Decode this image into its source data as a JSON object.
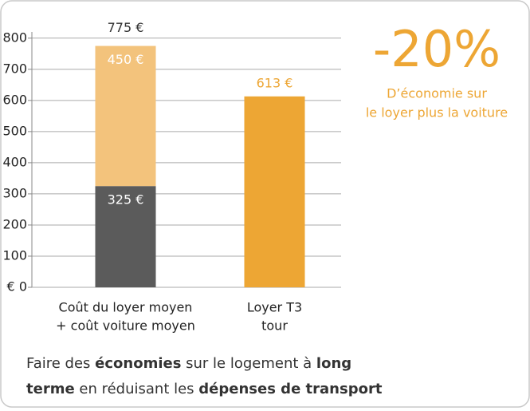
{
  "chart_data": {
    "type": "stacked_bar",
    "categories": [
      [
        "Coût du loyer moyen",
        "+ coût voiture moyen"
      ],
      [
        "Loyer T3",
        "tour"
      ]
    ],
    "series": [
      {
        "color": "#5b5b5b",
        "values": [
          325,
          null
        ],
        "value_labels": [
          "325 €",
          null
        ],
        "label_color": "#ffffff"
      },
      {
        "color": "#f3c37c",
        "values": [
          450,
          null
        ],
        "value_labels": [
          "450 €",
          null
        ],
        "label_color": "#ffffff"
      },
      {
        "color": "#eda634",
        "values": [
          null,
          613
        ],
        "value_labels": [
          null,
          "613 €"
        ],
        "label_color": "#eda634",
        "label_outside": true
      }
    ],
    "totals": [
      775,
      null
    ],
    "total_labels": [
      "775 €",
      null
    ],
    "ylim": [
      0,
      820
    ],
    "yticks": [
      {
        "value": 0,
        "label": "€ 0"
      },
      100,
      200,
      300,
      400,
      500,
      600,
      700,
      800
    ],
    "grid": true,
    "annotation": {
      "headline": "-20%",
      "lines": [
        "D’économie sur",
        "le loyer plus la voiture"
      ],
      "color": "#eda634"
    },
    "caption": [
      [
        {
          "text": "Faire des ",
          "bold": false
        },
        {
          "text": "économies",
          "bold": true
        },
        {
          "text": " sur le logement à ",
          "bold": false
        },
        {
          "text": "long",
          "bold": true
        }
      ],
      [
        {
          "text": "terme",
          "bold": true
        },
        {
          "text": " en réduisant les ",
          "bold": false
        },
        {
          "text": "dépenses de transport",
          "bold": true
        }
      ]
    ]
  }
}
